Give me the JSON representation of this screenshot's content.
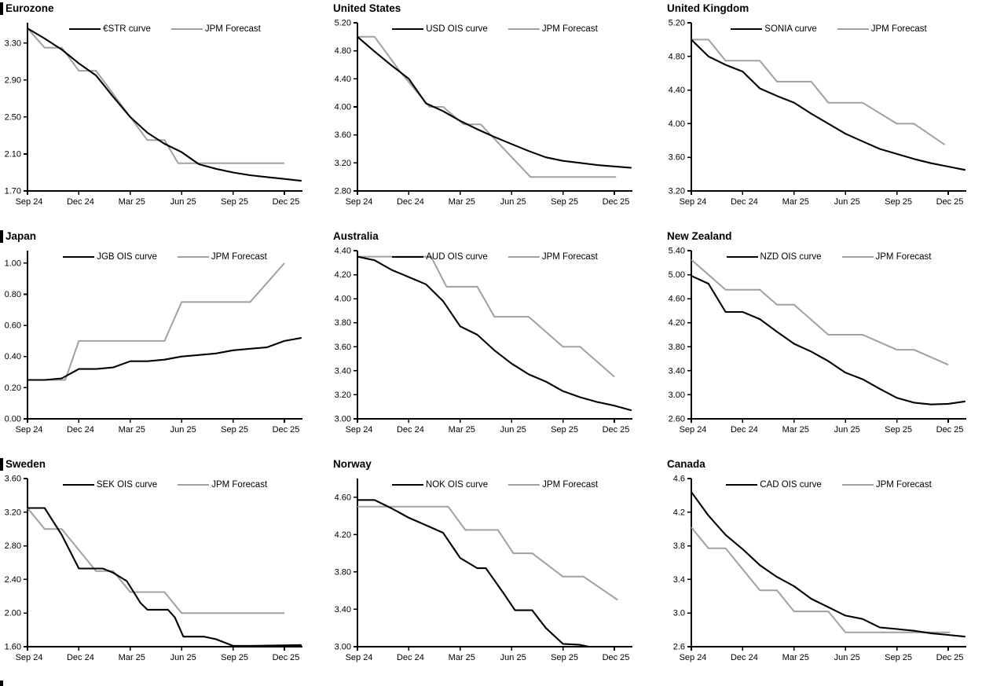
{
  "page": {
    "background": "#ffffff"
  },
  "colors": {
    "curve": "#000000",
    "forecast": "#a0a0a0",
    "axis": "#000000",
    "text": "#000000"
  },
  "axis": {
    "x_tick_labels": [
      "Sep 24",
      "Dec 24",
      "Mar 25",
      "Jun 25",
      "Sep 25",
      "Dec 25"
    ],
    "x_tick_months": [
      0,
      3,
      6,
      9,
      12,
      15
    ],
    "x_max": 16.05
  },
  "chart_data": [
    {
      "type": "line",
      "title": "Eurozone",
      "section_bar": true,
      "series_label": "€STR curve",
      "forecast_label": "JPM Forecast",
      "y_min": 1.7,
      "y_max": 3.52,
      "y_tick_values": [
        3.3,
        2.9,
        2.5,
        2.1,
        1.7
      ],
      "y_tick_labels": [
        "3.30",
        "2.90",
        "2.50",
        "2.10",
        "1.70"
      ],
      "ois": {
        "x": [
          0,
          1,
          2,
          3,
          4,
          5,
          6,
          7,
          8,
          9,
          10,
          11,
          12,
          13,
          14,
          15,
          16
        ],
        "y": [
          3.46,
          3.35,
          3.23,
          3.08,
          2.95,
          2.72,
          2.5,
          2.33,
          2.21,
          2.12,
          1.99,
          1.94,
          1.9,
          1.87,
          1.85,
          1.83,
          1.81
        ]
      },
      "forecast": {
        "x": [
          0,
          1,
          2,
          3,
          4,
          7,
          8,
          8.8,
          15.0
        ],
        "y": [
          3.46,
          3.25,
          3.25,
          3.0,
          3.0,
          2.25,
          2.25,
          2.0,
          2.0
        ]
      }
    },
    {
      "type": "line",
      "title": "United States",
      "section_bar": false,
      "series_label": "USD OIS curve",
      "forecast_label": "JPM Forecast",
      "y_min": 2.8,
      "y_max": 5.2,
      "y_tick_values": [
        5.2,
        4.8,
        4.4,
        4.0,
        3.6,
        3.2,
        2.8
      ],
      "y_tick_labels": [
        "5.20",
        "4.80",
        "4.40",
        "4.00",
        "3.60",
        "3.20",
        "2.80"
      ],
      "ois": {
        "x": [
          0,
          1,
          2,
          3,
          4,
          5,
          6,
          7,
          8,
          9,
          10,
          11,
          12,
          13,
          14,
          15,
          16
        ],
        "y": [
          5.0,
          4.79,
          4.59,
          4.4,
          4.05,
          3.94,
          3.8,
          3.68,
          3.57,
          3.47,
          3.37,
          3.28,
          3.23,
          3.2,
          3.17,
          3.15,
          3.13
        ]
      },
      "forecast": {
        "x": [
          0,
          1,
          2.5,
          4.2,
          5,
          6.2,
          7.2,
          10.1,
          15.1
        ],
        "y": [
          5.0,
          5.0,
          4.5,
          4.0,
          4.0,
          3.75,
          3.75,
          3.0,
          3.0
        ]
      }
    },
    {
      "type": "line",
      "title": "United Kingdom",
      "section_bar": false,
      "series_label": "SONIA curve",
      "forecast_label": "JPM Forecast",
      "y_min": 3.2,
      "y_max": 5.2,
      "y_tick_values": [
        5.2,
        4.8,
        4.4,
        4.0,
        3.6,
        3.2
      ],
      "y_tick_labels": [
        "5.20",
        "4.80",
        "4.40",
        "4.00",
        "3.60",
        "3.20"
      ],
      "ois": {
        "x": [
          0,
          1,
          2,
          3,
          4,
          5,
          6,
          7,
          8,
          9,
          10,
          11,
          12,
          13,
          14,
          15,
          16
        ],
        "y": [
          5.0,
          4.8,
          4.7,
          4.62,
          4.42,
          4.33,
          4.25,
          4.12,
          4.0,
          3.88,
          3.79,
          3.7,
          3.64,
          3.58,
          3.53,
          3.49,
          3.45
        ]
      },
      "forecast": {
        "x": [
          0,
          1,
          2,
          4,
          5,
          7,
          8,
          10,
          12,
          13,
          14.8
        ],
        "y": [
          5.0,
          5.0,
          4.75,
          4.75,
          4.5,
          4.5,
          4.25,
          4.25,
          4.0,
          4.0,
          3.75
        ]
      }
    },
    {
      "type": "line",
      "title": "Japan",
      "section_bar": true,
      "series_label": "JGB OIS curve",
      "forecast_label": "JPM Forecast",
      "y_min": 0.0,
      "y_max": 1.08,
      "y_tick_values": [
        1.0,
        0.8,
        0.6,
        0.4,
        0.2,
        0.0
      ],
      "y_tick_labels": [
        "1.00",
        "0.80",
        "0.60",
        "0.40",
        "0.20",
        "0.00"
      ],
      "ois": {
        "x": [
          0,
          1,
          2,
          3,
          4,
          5,
          6,
          7,
          8,
          9,
          10,
          11,
          12,
          13,
          14,
          15,
          16
        ],
        "y": [
          0.25,
          0.25,
          0.26,
          0.32,
          0.32,
          0.33,
          0.37,
          0.37,
          0.38,
          0.4,
          0.41,
          0.42,
          0.44,
          0.45,
          0.46,
          0.5,
          0.52
        ]
      },
      "forecast": {
        "x": [
          0,
          2.2,
          3,
          8,
          9,
          13,
          15
        ],
        "y": [
          0.25,
          0.25,
          0.5,
          0.5,
          0.75,
          0.75,
          1.0
        ]
      }
    },
    {
      "type": "line",
      "title": "Australia",
      "section_bar": false,
      "series_label": "AUD OIS curve",
      "forecast_label": "JPM Forecast",
      "y_min": 3.0,
      "y_max": 4.4,
      "y_tick_values": [
        4.4,
        4.2,
        4.0,
        3.8,
        3.6,
        3.4,
        3.2,
        3.0
      ],
      "y_tick_labels": [
        "4.40",
        "4.20",
        "4.00",
        "3.80",
        "3.60",
        "3.40",
        "3.20",
        "3.00"
      ],
      "ois": {
        "x": [
          0,
          1,
          2,
          3,
          4,
          5,
          6,
          7,
          8,
          9,
          10,
          11,
          12,
          13,
          14,
          15,
          16
        ],
        "y": [
          4.35,
          4.32,
          4.24,
          4.18,
          4.12,
          3.98,
          3.77,
          3.7,
          3.57,
          3.46,
          3.37,
          3.31,
          3.23,
          3.18,
          3.14,
          3.11,
          3.07
        ]
      },
      "forecast": {
        "x": [
          0,
          4.3,
          5.2,
          7,
          8,
          10,
          12,
          13,
          15
        ],
        "y": [
          4.35,
          4.35,
          4.1,
          4.1,
          3.85,
          3.85,
          3.6,
          3.6,
          3.35
        ]
      }
    },
    {
      "type": "line",
      "title": "New Zealand",
      "section_bar": false,
      "series_label": "NZD OIS curve",
      "forecast_label": "JPM Forecast",
      "y_min": 2.6,
      "y_max": 5.4,
      "y_tick_values": [
        5.4,
        5.0,
        4.6,
        4.2,
        3.8,
        3.4,
        3.0,
        2.6
      ],
      "y_tick_labels": [
        "5.40",
        "5.00",
        "4.60",
        "4.20",
        "3.80",
        "3.40",
        "3.00",
        "2.60"
      ],
      "ois": {
        "x": [
          0,
          1,
          2,
          3,
          4,
          5,
          6,
          7,
          8,
          9,
          10,
          11,
          12,
          13,
          14,
          15,
          16
        ],
        "y": [
          4.98,
          4.85,
          4.38,
          4.38,
          4.26,
          4.05,
          3.85,
          3.72,
          3.56,
          3.37,
          3.26,
          3.1,
          2.95,
          2.87,
          2.84,
          2.85,
          2.89
        ]
      },
      "forecast": {
        "x": [
          0,
          2,
          4,
          5,
          6,
          8,
          10,
          12,
          13,
          15
        ],
        "y": [
          5.25,
          4.75,
          4.75,
          4.5,
          4.5,
          4.0,
          4.0,
          3.75,
          3.75,
          3.5
        ]
      }
    },
    {
      "type": "line",
      "title": "Sweden",
      "section_bar": true,
      "series_label": "SEK OIS curve",
      "forecast_label": "JPM Forecast",
      "y_min": 1.6,
      "y_max": 3.6,
      "y_tick_values": [
        3.6,
        3.2,
        2.8,
        2.4,
        2.0,
        1.6
      ],
      "y_tick_labels": [
        "3.60",
        "3.20",
        "2.80",
        "2.40",
        "2.00",
        "1.60"
      ],
      "ois": {
        "x": [
          0,
          1,
          2,
          3,
          4.4,
          5,
          5.8,
          6.6,
          7,
          8.2,
          8.6,
          9.1,
          10.3,
          11,
          12,
          13,
          16.0
        ],
        "y": [
          3.25,
          3.25,
          2.93,
          2.53,
          2.53,
          2.48,
          2.38,
          2.12,
          2.04,
          2.04,
          1.95,
          1.72,
          1.72,
          1.69,
          1.61,
          1.61,
          1.62
        ]
      },
      "forecast": {
        "x": [
          0,
          1,
          2,
          4,
          5,
          6,
          8,
          9,
          15.0
        ],
        "y": [
          3.25,
          3.0,
          3.0,
          2.5,
          2.5,
          2.25,
          2.25,
          2.0,
          2.0
        ]
      }
    },
    {
      "type": "line",
      "title": "Norway",
      "section_bar": false,
      "series_label": "NOK OIS curve",
      "forecast_label": "JPM Forecast",
      "y_min": 3.0,
      "y_max": 4.8,
      "y_tick_values": [
        4.6,
        4.2,
        3.8,
        3.4,
        3.0
      ],
      "y_tick_labels": [
        "4.60",
        "4.20",
        "3.80",
        "3.40",
        "3.00"
      ],
      "ois": {
        "x": [
          0,
          1,
          2,
          3,
          4,
          5,
          6,
          7,
          7.5,
          8.5,
          9.2,
          10.2,
          11,
          12,
          13,
          13.5,
          14.2
        ],
        "y": [
          4.57,
          4.57,
          4.48,
          4.38,
          4.3,
          4.22,
          3.95,
          3.84,
          3.84,
          3.58,
          3.39,
          3.39,
          3.2,
          3.03,
          3.02,
          3.0,
          3.0
        ]
      },
      "forecast": {
        "x": [
          0,
          5.3,
          6.3,
          8.2,
          9.1,
          10.2,
          12,
          13.2,
          15.2
        ],
        "y": [
          4.5,
          4.5,
          4.25,
          4.25,
          4.0,
          4.0,
          3.75,
          3.75,
          3.5
        ]
      }
    },
    {
      "type": "line",
      "title": "Canada",
      "section_bar": false,
      "series_label": "CAD OIS curve",
      "forecast_label": "JPM Forecast",
      "y_min": 2.6,
      "y_max": 4.6,
      "y_tick_values": [
        4.6,
        4.2,
        3.8,
        3.4,
        3.0,
        2.6
      ],
      "y_tick_labels": [
        "4.6",
        "4.2",
        "3.8",
        "3.4",
        "3.0",
        "2.6"
      ],
      "ois": {
        "x": [
          0,
          1,
          2,
          3,
          4,
          5,
          6,
          7,
          8,
          9,
          10,
          11,
          12,
          13,
          14,
          15,
          16
        ],
        "y": [
          4.44,
          4.16,
          3.93,
          3.76,
          3.57,
          3.43,
          3.32,
          3.17,
          3.07,
          2.97,
          2.93,
          2.83,
          2.81,
          2.79,
          2.76,
          2.74,
          2.72
        ]
      },
      "forecast": {
        "x": [
          0,
          1,
          2,
          4,
          5,
          6,
          8,
          9,
          15.1
        ],
        "y": [
          4.02,
          3.77,
          3.77,
          3.27,
          3.27,
          3.02,
          3.02,
          2.77,
          2.77
        ]
      }
    }
  ]
}
